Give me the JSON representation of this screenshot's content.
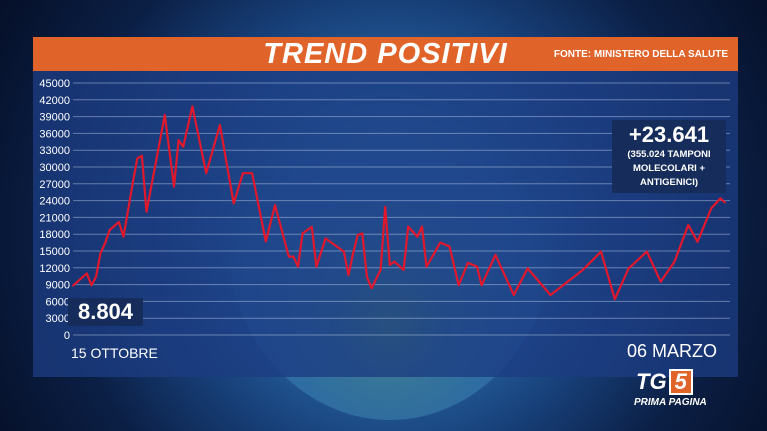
{
  "header": {
    "title": "TREND POSITIVI",
    "source": "FONTE: MINISTERO DELLA SALUTE"
  },
  "callouts": {
    "start_value": "8.804",
    "end_value": "+23.641",
    "end_note_1": "(355.024 TAMPONI",
    "end_note_2": "MOLECOLARI +",
    "end_note_3": "ANTIGENICI)"
  },
  "logo": {
    "text": "TG",
    "number": "5",
    "subtitle": "PRIMA PAGINA"
  },
  "chart_data": {
    "type": "line",
    "title": "TREND POSITIVI",
    "x_start_label": "15 OTTOBRE",
    "x_end_label": "06 MARZO",
    "ylim": [
      0,
      45000
    ],
    "yticks": [
      0,
      3000,
      6000,
      9000,
      12000,
      15000,
      18000,
      21000,
      24000,
      27000,
      30000,
      33000,
      36000,
      39000,
      42000,
      45000
    ],
    "grid": true,
    "line_color": "#e0182d",
    "x": [
      "10-15",
      "10-18",
      "10-19",
      "10-20",
      "10-21",
      "10-22",
      "10-23",
      "10-25",
      "10-26",
      "10-27",
      "10-28",
      "10-29",
      "10-30",
      "10-31",
      "11-04",
      "11-06",
      "11-07",
      "11-08",
      "11-10",
      "11-13",
      "11-16",
      "11-19",
      "11-21",
      "11-23",
      "11-26",
      "11-28",
      "12-01",
      "12-02",
      "12-03",
      "12-04",
      "12-06",
      "12-07",
      "12-09",
      "12-13",
      "12-14",
      "12-15",
      "12-16",
      "12-17",
      "12-18",
      "12-19",
      "12-21",
      "12-22",
      "12-23",
      "12-24",
      "12-26",
      "12-27",
      "12-29",
      "12-30",
      "12-31",
      "01-03",
      "01-05",
      "01-07",
      "01-09",
      "01-11",
      "01-12",
      "01-15",
      "01-19",
      "01-22",
      "01-27",
      "02-03",
      "02-07",
      "02-10",
      "02-13",
      "02-17",
      "02-20",
      "02-23",
      "02-26",
      "02-28",
      "03-03",
      "03-05",
      "03-06"
    ],
    "y": [
      8804,
      11000,
      8900,
      10400,
      14600,
      16400,
      18750,
      20200,
      17550,
      22300,
      27100,
      31550,
      32000,
      22000,
      39300,
      26500,
      34800,
      33600,
      40800,
      28900,
      37500,
      23500,
      28900,
      28900,
      16700,
      23200,
      14000,
      14000,
      12200,
      18150,
      19300,
      12200,
      17250,
      14900,
      10700,
      14600,
      17850,
      18150,
      10400,
      8350,
      11600,
      22900,
      12500,
      13100,
      11600,
      19350,
      17550,
      19350,
      12200,
      16500,
      15800,
      8900,
      12900,
      12200,
      8900,
      14300,
      7150,
      11900,
      7150,
      11600,
      14900,
      6400,
      11900,
      14900,
      9500,
      13100,
      19650,
      16650,
      22600,
      24400,
      23641
    ]
  }
}
